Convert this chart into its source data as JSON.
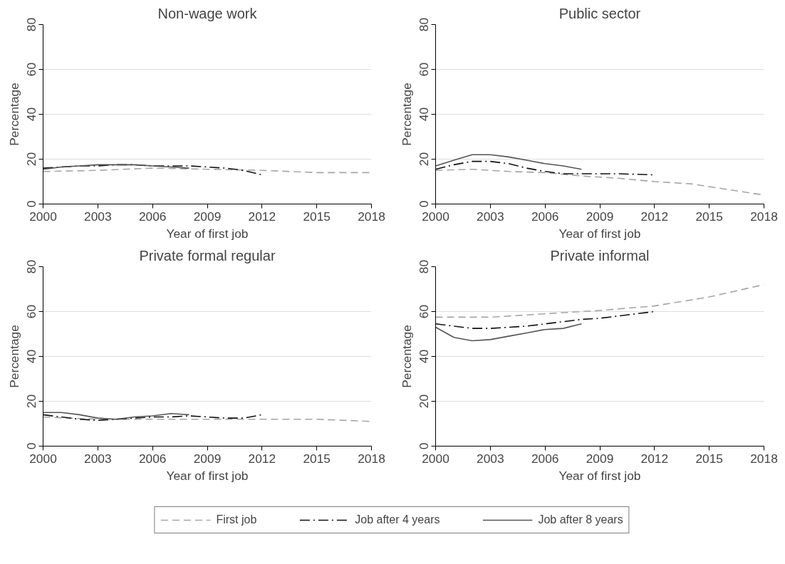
{
  "chart_data": [
    {
      "type": "line",
      "title": "Non-wage work",
      "xlabel": "Year of first job",
      "ylabel": "Percentage",
      "xlim": [
        2000,
        2018
      ],
      "xticks": [
        2000,
        2003,
        2006,
        2009,
        2012,
        2015,
        2018
      ],
      "ylim": [
        0,
        80
      ],
      "yticks": [
        0,
        20,
        40,
        60,
        80
      ],
      "grid": "y",
      "legend": "bottom",
      "series": [
        {
          "name": "First job",
          "color": "#a6a6a6",
          "line_style": "dashed",
          "x": [
            2000,
            2003,
            2006,
            2009,
            2012,
            2015,
            2018
          ],
          "values": [
            14.5,
            15,
            16,
            15.5,
            15,
            14,
            14
          ]
        },
        {
          "name": "Job after 4 years",
          "color": "#111111",
          "line_style": "dashdot",
          "x": [
            2000,
            2001,
            2002,
            2003,
            2004,
            2005,
            2006,
            2007,
            2008,
            2009,
            2010,
            2011,
            2012
          ],
          "values": [
            16,
            16.5,
            17,
            17,
            17.5,
            17.5,
            17,
            17,
            17,
            16.5,
            16,
            15,
            13
          ]
        },
        {
          "name": "Job after 8 years",
          "color": "#555555",
          "line_style": "solid",
          "x": [
            2000,
            2001,
            2002,
            2003,
            2004,
            2005,
            2006,
            2007,
            2008
          ],
          "values": [
            15.5,
            16.5,
            17,
            17.5,
            17.5,
            17.5,
            17,
            16.5,
            16
          ]
        }
      ]
    },
    {
      "type": "line",
      "title": "Public sector",
      "xlabel": "Year of first job",
      "ylabel": "Percentage",
      "xlim": [
        2000,
        2018
      ],
      "xticks": [
        2000,
        2003,
        2006,
        2009,
        2012,
        2015,
        2018
      ],
      "ylim": [
        0,
        80
      ],
      "yticks": [
        0,
        20,
        40,
        60,
        80
      ],
      "grid": "y",
      "series": [
        {
          "color": "#a6a6a6",
          "line_style": "dashed",
          "x": [
            2000,
            2002,
            2004,
            2006,
            2008,
            2010,
            2012,
            2014,
            2016,
            2018
          ],
          "values": [
            15,
            15.5,
            14.5,
            14,
            12.5,
            11.5,
            10,
            9,
            6.5,
            4
          ]
        },
        {
          "color": "#111111",
          "line_style": "dashdot",
          "x": [
            2000,
            2001,
            2002,
            2003,
            2004,
            2005,
            2006,
            2007,
            2008,
            2010,
            2012
          ],
          "values": [
            15.5,
            17.5,
            19,
            19,
            18,
            16,
            14.5,
            13.5,
            13.5,
            13.5,
            13
          ]
        },
        {
          "color": "#555555",
          "line_style": "solid",
          "x": [
            2000,
            2001,
            2002,
            2003,
            2004,
            2005,
            2006,
            2007,
            2008
          ],
          "values": [
            17,
            19.5,
            22,
            22,
            21,
            19.5,
            18,
            17,
            15.5
          ]
        }
      ]
    },
    {
      "type": "line",
      "title": "Private formal regular",
      "xlabel": "Year of first job",
      "ylabel": "Percentage",
      "xlim": [
        2000,
        2018
      ],
      "xticks": [
        2000,
        2003,
        2006,
        2009,
        2012,
        2015,
        2018
      ],
      "ylim": [
        0,
        80
      ],
      "yticks": [
        0,
        20,
        40,
        60,
        80
      ],
      "grid": "y",
      "series": [
        {
          "color": "#a6a6a6",
          "line_style": "dashed",
          "x": [
            2000,
            2003,
            2006,
            2009,
            2012,
            2015,
            2018
          ],
          "values": [
            13,
            12,
            12,
            12,
            12,
            12,
            11
          ]
        },
        {
          "color": "#111111",
          "line_style": "dashdot",
          "x": [
            2000,
            2001,
            2002,
            2003,
            2004,
            2005,
            2006,
            2007,
            2008,
            2009,
            2010,
            2011,
            2012
          ],
          "values": [
            14,
            13,
            12,
            11.5,
            12,
            12.5,
            13,
            13,
            13.5,
            13,
            12.5,
            12.5,
            14
          ]
        },
        {
          "color": "#555555",
          "line_style": "solid",
          "x": [
            2000,
            2001,
            2002,
            2003,
            2004,
            2005,
            2006,
            2007,
            2008
          ],
          "values": [
            15,
            15,
            14,
            12.5,
            12,
            13,
            13.5,
            14.5,
            14
          ]
        }
      ]
    },
    {
      "type": "line",
      "title": "Private informal",
      "xlabel": "Year of first job",
      "ylabel": "Percentage",
      "xlim": [
        2000,
        2018
      ],
      "xticks": [
        2000,
        2003,
        2006,
        2009,
        2012,
        2015,
        2018
      ],
      "ylim": [
        0,
        80
      ],
      "yticks": [
        0,
        20,
        40,
        60,
        80
      ],
      "grid": "y",
      "series": [
        {
          "color": "#a6a6a6",
          "line_style": "dashed",
          "x": [
            2000,
            2003,
            2006,
            2009,
            2012,
            2015,
            2018
          ],
          "values": [
            57.5,
            57.5,
            59,
            60.5,
            62.5,
            66.5,
            72
          ]
        },
        {
          "color": "#111111",
          "line_style": "dashdot",
          "x": [
            2000,
            2001,
            2002,
            2003,
            2004,
            2005,
            2006,
            2007,
            2008,
            2009,
            2010,
            2011,
            2012
          ],
          "values": [
            54.5,
            53.5,
            52.5,
            52.5,
            53,
            53.5,
            54.5,
            55.5,
            56.5,
            57,
            58,
            59,
            60
          ]
        },
        {
          "color": "#555555",
          "line_style": "solid",
          "x": [
            2000,
            2001,
            2002,
            2003,
            2004,
            2005,
            2006,
            2007,
            2008
          ],
          "values": [
            53,
            48.5,
            47,
            47.5,
            49,
            50.5,
            52,
            52.5,
            54.5
          ]
        }
      ]
    }
  ]
}
